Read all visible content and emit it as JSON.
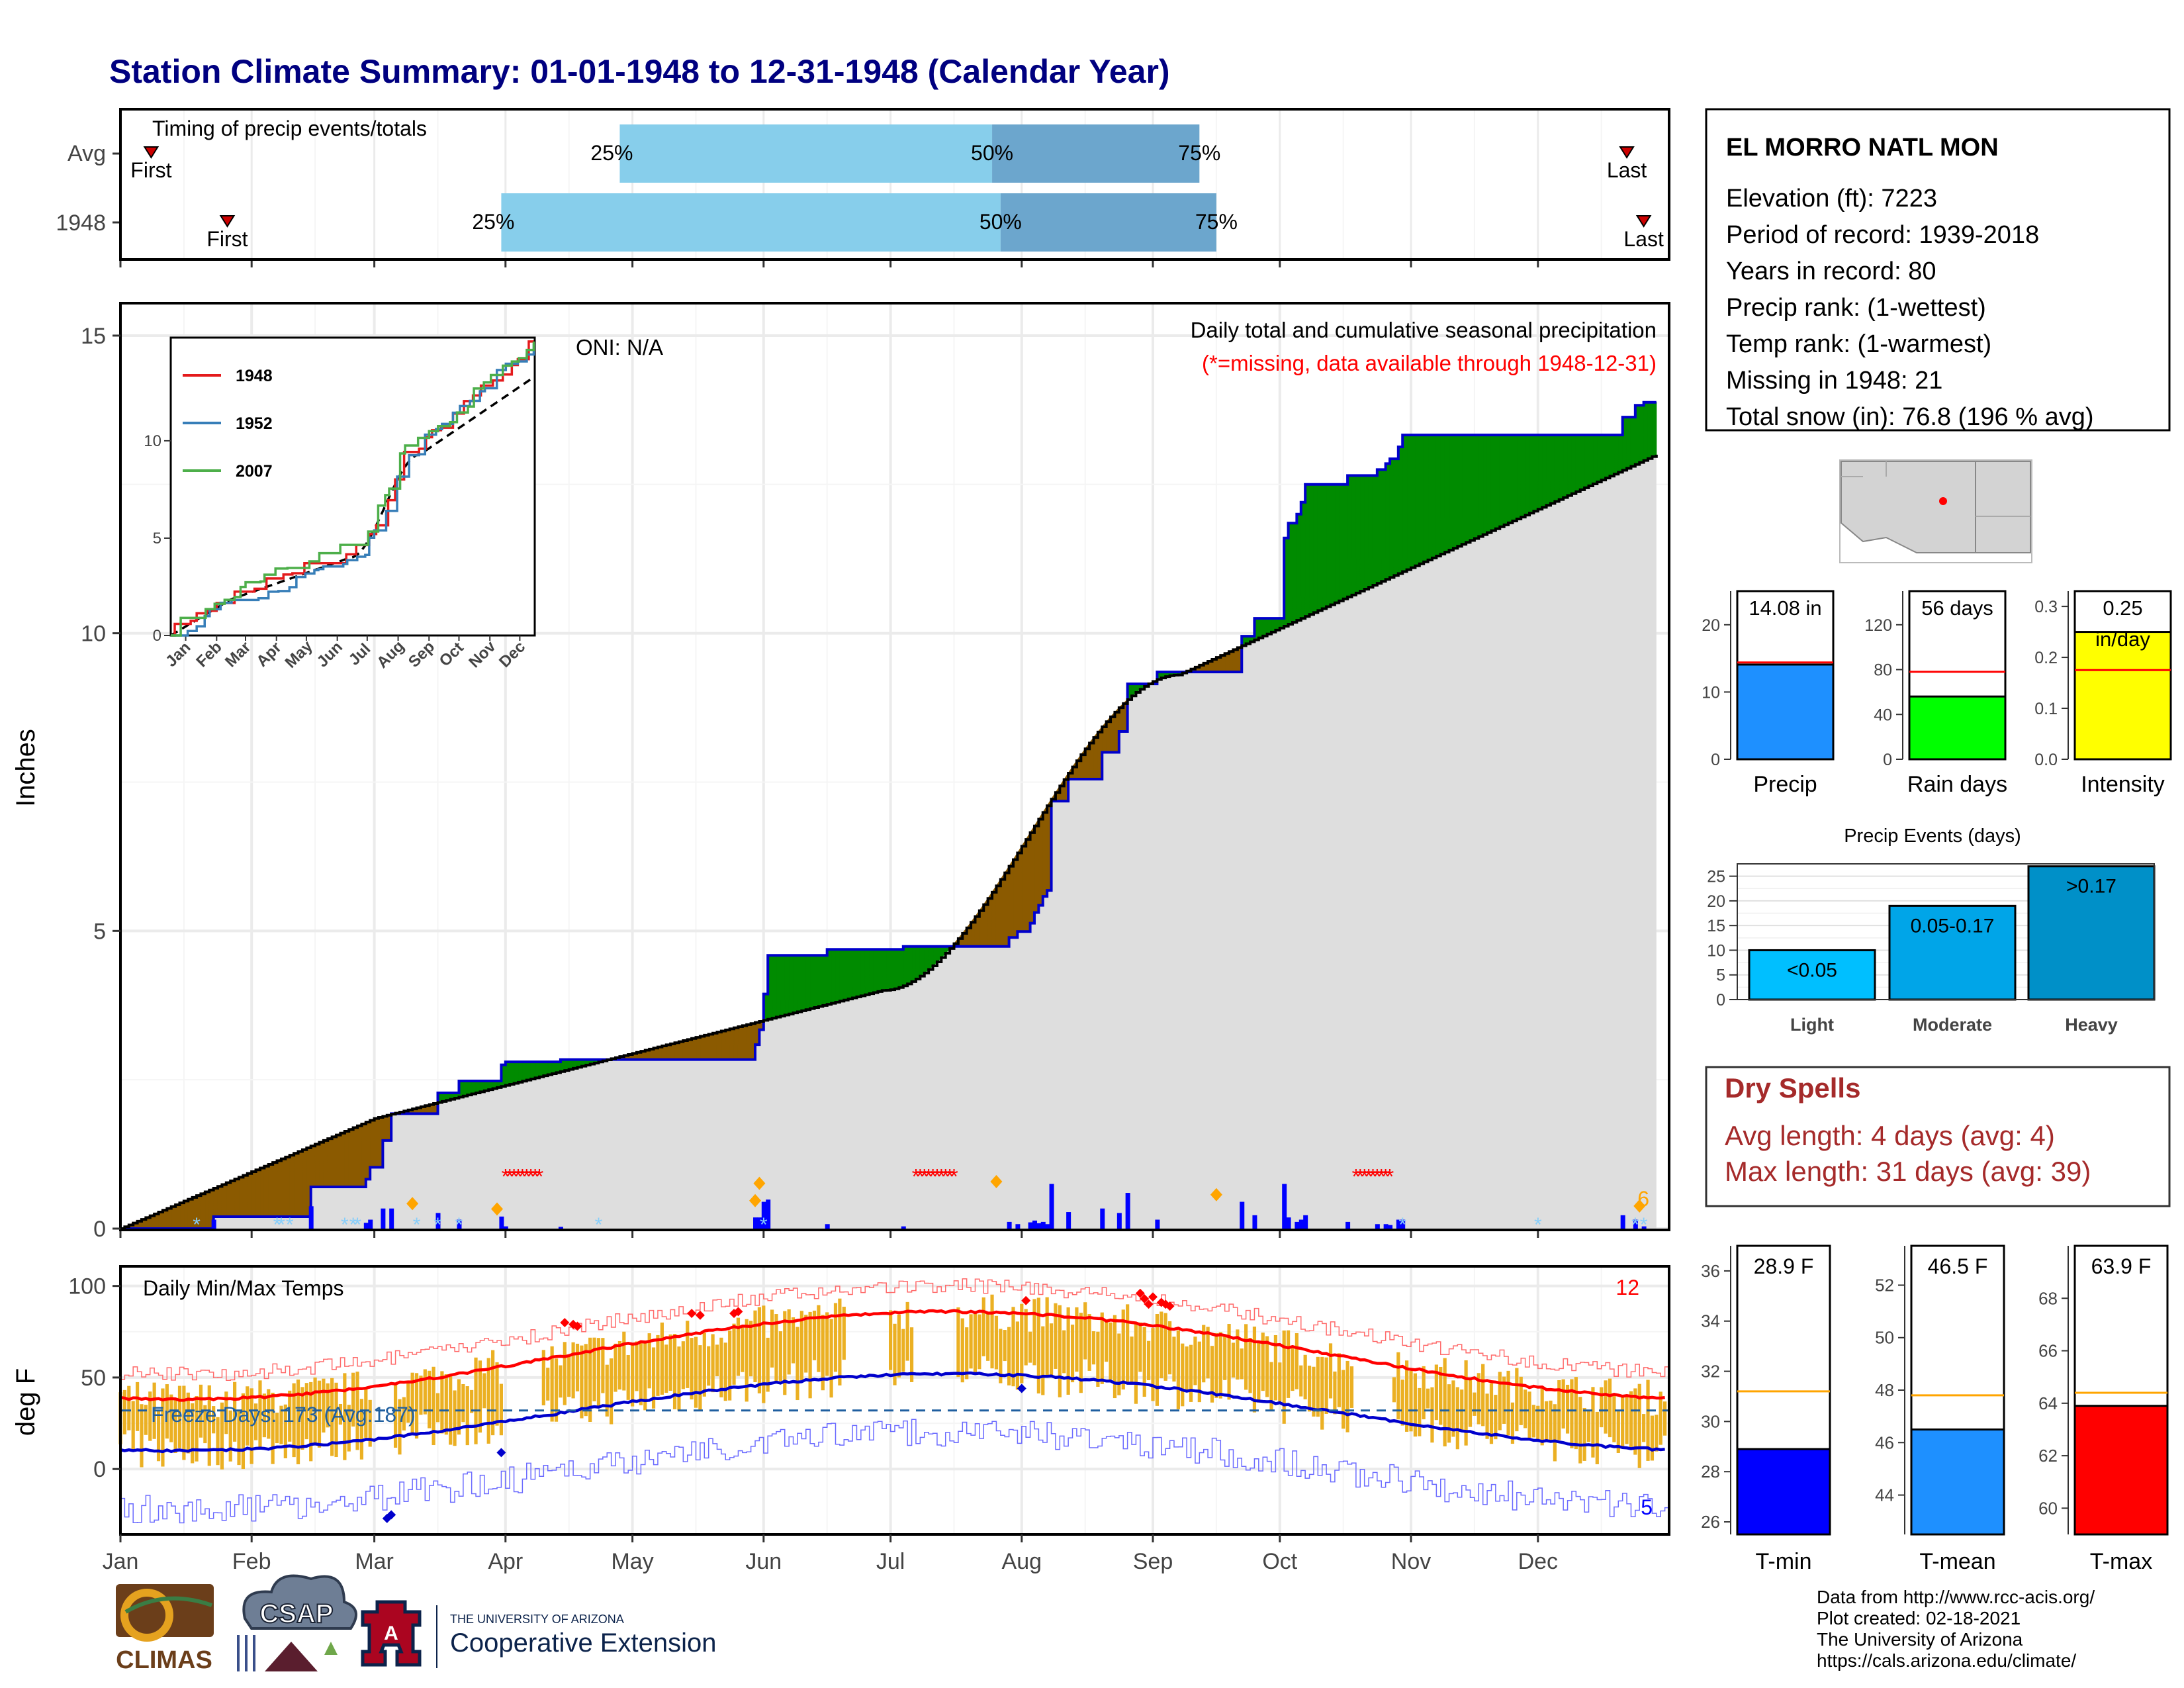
{
  "title": "Station Climate Summary: 01-01-1948 to 12-31-1948 (Calendar Year)",
  "colors": {
    "title": "#000080",
    "light_blue": "#87CEEB",
    "mid_blue": "#6CA6CD",
    "green": "#008B00",
    "brown": "#8B5A00",
    "gray_fill": "#DEDEDE",
    "bar_blue": "#0000FF",
    "temp_bar": "#EBB023",
    "red": "#FF0000",
    "blue": "#0000FF",
    "dry_spell": "#A52A2A",
    "orange": "#FFA500",
    "snow": "#87CEFA"
  },
  "timing": {
    "title": "Timing of precip events/totals",
    "rows": [
      {
        "label": "Avg",
        "first_label": "First",
        "last_label": "Last",
        "p25": "25%",
        "p50": "50%",
        "p75": "75%",
        "first_day": 1,
        "last_day": 356,
        "d25": 118,
        "d50": 206,
        "d75": 255
      },
      {
        "label": "1948",
        "first_label": "First",
        "last_label": "Last",
        "p25": "25%",
        "p50": "50%",
        "p75": "75%",
        "first_day": 19,
        "last_day": 360,
        "d25": 90,
        "d50": 208,
        "d75": 259
      }
    ]
  },
  "precip_panel": {
    "ylabel": "Inches",
    "oni": "ONI: N/A",
    "legend_title": "Daily total and cumulative seasonal precipitation",
    "missing_note": "(*=missing, data available through 1948-12-31)",
    "yticks": [
      "0",
      "5",
      "10",
      "15"
    ],
    "snow_count": "6"
  },
  "inset": {
    "years": [
      "1948",
      "1952",
      "2007"
    ],
    "colors": [
      "#E41A1C",
      "#377EB8",
      "#4DAF4A"
    ],
    "yticks": [
      "0",
      "5",
      "10"
    ],
    "xticks": [
      "Jan",
      "Feb",
      "Mar",
      "Apr",
      "May",
      "Jun",
      "Jul",
      "Aug",
      "Sep",
      "Oct",
      "Nov",
      "Dec"
    ]
  },
  "temp_panel": {
    "title": "Daily Min/Max Temps",
    "ylabel": "deg F",
    "yticks": [
      "0",
      "50",
      "100"
    ],
    "freeze_days": "Freeze Days: 173 (Avg:187)",
    "max_count": "12",
    "min_count": "5"
  },
  "x_months": [
    "Jan",
    "Feb",
    "Mar",
    "Apr",
    "May",
    "Jun",
    "Jul",
    "Aug",
    "Sep",
    "Oct",
    "Nov",
    "Dec"
  ],
  "station": {
    "name": "EL MORRO NATL MON",
    "elevation": "Elevation (ft): 7223",
    "period": "Period of record: 1939-2018",
    "years": "Years in record: 80",
    "precip_rank": "Precip rank:  (1-wettest)",
    "temp_rank": "Temp rank:  (1-warmest)",
    "missing": "Missing in 1948: 21",
    "snow": "Total snow (in): 76.8 (196 % avg)"
  },
  "summary_bars": [
    {
      "label": "Precip",
      "value": 14.08,
      "avg": 14.4,
      "value_label": "14.08 in",
      "unit_label": "",
      "yticks": [
        "0",
        "10",
        "20"
      ],
      "ymax": 25,
      "color": "#1E90FF"
    },
    {
      "label": "Rain days",
      "value": 56,
      "avg": 78,
      "value_label": "56 days",
      "unit_label": "",
      "yticks": [
        "0",
        "40",
        "80",
        "120"
      ],
      "ymax": 150,
      "color": "#00FF00"
    },
    {
      "label": "Intensity",
      "value": 0.25,
      "avg": 0.175,
      "value_label": "0.25",
      "unit_label": "in/day",
      "yticks": [
        "0.0",
        "0.1",
        "0.2",
        "0.3"
      ],
      "ymax": 0.33,
      "color": "#FFFF00"
    }
  ],
  "precip_events": {
    "title": "Precip Events (days)",
    "yticks": [
      "0",
      "5",
      "10",
      "15",
      "20",
      "25"
    ],
    "categories": [
      "Light",
      "Moderate",
      "Heavy"
    ],
    "labels": [
      "<0.05",
      "0.05-0.17",
      ">0.17"
    ],
    "values": [
      10,
      19,
      27
    ],
    "colors": [
      "#00BFFF",
      "#00A5E8",
      "#0090C8"
    ]
  },
  "dry_spells": {
    "title": "Dry Spells",
    "avg": "Avg length: 4 days (avg: 4)",
    "max": "Max length: 31 days (avg: 39)"
  },
  "temp_bars": [
    {
      "label": "T-min",
      "value": 28.9,
      "avg": 31.2,
      "value_label": "28.9 F",
      "yticks": [
        "26",
        "28",
        "30",
        "32",
        "34",
        "36"
      ],
      "ymin": 25.5,
      "ymax": 37,
      "color": "#0000FF"
    },
    {
      "label": "T-mean",
      "value": 46.5,
      "avg": 47.8,
      "value_label": "46.5 F",
      "yticks": [
        "44",
        "46",
        "48",
        "50",
        "52"
      ],
      "ymin": 42.5,
      "ymax": 53.5,
      "color": "#1E90FF"
    },
    {
      "label": "T-max",
      "value": 63.9,
      "avg": 64.4,
      "value_label": "63.9 F",
      "yticks": [
        "60",
        "62",
        "64",
        "66",
        "68"
      ],
      "ymin": 59,
      "ymax": 70,
      "color": "#FF0000"
    }
  ],
  "credits": {
    "line1": "Data from http://www.rcc-acis.org/",
    "line2": "Plot created: 02-18-2021",
    "line3": "The University of Arizona",
    "line4": "https://cals.arizona.edu/climate/"
  },
  "logos": {
    "climas": "CLIMAS",
    "csap": "CSAP",
    "ua_small": "THE UNIVERSITY OF ARIZONA",
    "ua_big": "Cooperative Extension",
    "ua_letter": "A"
  }
}
